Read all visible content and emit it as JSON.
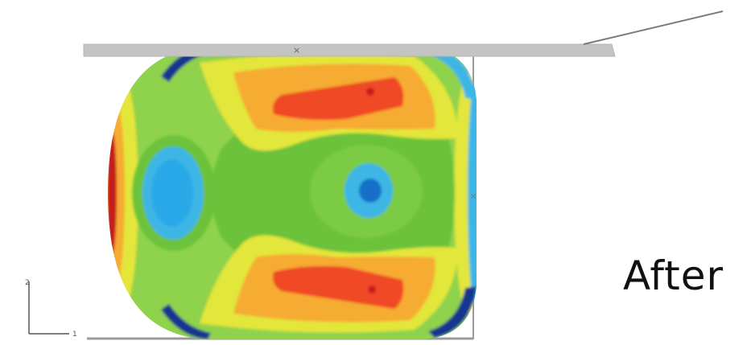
{
  "caption": "After",
  "triad": {
    "y_label": "2",
    "x_label": "1"
  },
  "colors": {
    "die": "#c4c4c4",
    "frame": "#9b9b9b",
    "base": "#8fd24c",
    "green": "#6cc23a",
    "yellow": "#e3e63a",
    "orange": "#f6ab31",
    "red": "#ef4a26",
    "darkred": "#c41d1d",
    "cyan": "#3db6e6",
    "blue": "#1770c8",
    "navy": "#15358f"
  }
}
